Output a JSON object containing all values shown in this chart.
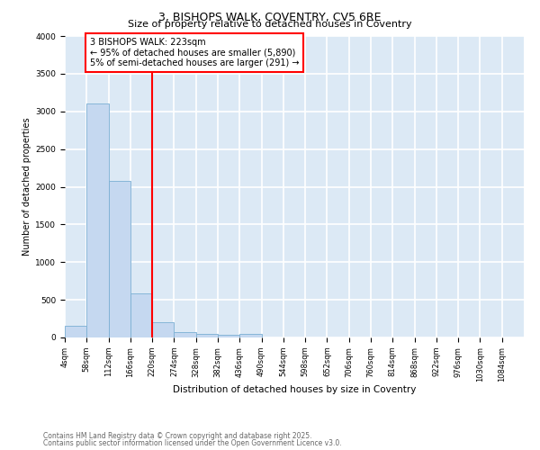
{
  "title1": "3, BISHOPS WALK, COVENTRY, CV5 6RE",
  "title2": "Size of property relative to detached houses in Coventry",
  "xlabel": "Distribution of detached houses by size in Coventry",
  "ylabel": "Number of detached properties",
  "bar_color": "#c5d8f0",
  "bar_edge_color": "#7bafd4",
  "background_color": "#dce9f5",
  "grid_color": "#ffffff",
  "bin_labels": [
    "4sqm",
    "58sqm",
    "112sqm",
    "166sqm",
    "220sqm",
    "274sqm",
    "328sqm",
    "382sqm",
    "436sqm",
    "490sqm",
    "544sqm",
    "598sqm",
    "652sqm",
    "706sqm",
    "760sqm",
    "814sqm",
    "868sqm",
    "922sqm",
    "976sqm",
    "1030sqm",
    "1084sqm"
  ],
  "bar_values": [
    150,
    3100,
    2080,
    580,
    200,
    70,
    50,
    30,
    50,
    0,
    0,
    0,
    0,
    0,
    0,
    0,
    0,
    0,
    0,
    0
  ],
  "annotation_text": "3 BISHOPS WALK: 223sqm\n← 95% of detached houses are smaller (5,890)\n5% of semi-detached houses are larger (291) →",
  "red_line_x": 220,
  "ylim": [
    0,
    4000
  ],
  "yticks": [
    0,
    500,
    1000,
    1500,
    2000,
    2500,
    3000,
    3500,
    4000
  ],
  "footnote1": "Contains HM Land Registry data © Crown copyright and database right 2025.",
  "footnote2": "Contains public sector information licensed under the Open Government Licence v3.0.",
  "title1_fontsize": 9,
  "title2_fontsize": 8,
  "xlabel_fontsize": 7.5,
  "ylabel_fontsize": 7,
  "tick_fontsize": 6,
  "annot_fontsize": 7,
  "footnote_fontsize": 5.5
}
